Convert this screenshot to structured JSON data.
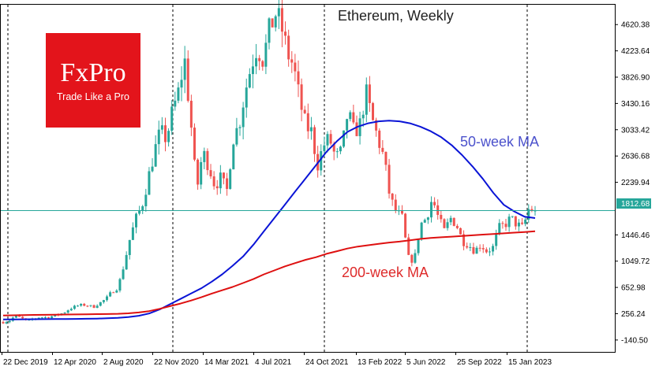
{
  "brand": {
    "name": "FxPro",
    "tagline": "Trade Like a Pro"
  },
  "chart_data": {
    "type": "candlestick",
    "title": "Ethereum, Weekly",
    "current_price": 1812.68,
    "price_label": "1812.68",
    "ylim": [
      -320,
      4920
    ],
    "y_ticks": [
      {
        "value": 4620.38,
        "label": "4620.38"
      },
      {
        "value": 4223.64,
        "label": "4223.64"
      },
      {
        "value": 3826.9,
        "label": "3826.90"
      },
      {
        "value": 3430.16,
        "label": "3430.16"
      },
      {
        "value": 3033.42,
        "label": "3033.42"
      },
      {
        "value": 2636.68,
        "label": "2636.68"
      },
      {
        "value": 2239.94,
        "label": "2239.94"
      },
      {
        "value": 1446.46,
        "label": "1446.46"
      },
      {
        "value": 1049.72,
        "label": "1049.72"
      },
      {
        "value": 652.98,
        "label": "652.98"
      },
      {
        "value": 256.24,
        "label": "256.24"
      },
      {
        "value": -140.5,
        "label": "-140.50"
      }
    ],
    "x_ticks": [
      "22 Dec 2019",
      "12 Apr 2020",
      "2 Aug 2020",
      "22 Nov 2020",
      "14 Mar 2021",
      "4 Jul 2021",
      "24 Oct 2021",
      "13 Feb 2022",
      "5 Jun 2022",
      "25 Sep 2022",
      "15 Jan 2023"
    ],
    "separators": [
      "22 Nov 2020",
      "24 Oct 2021",
      "15 Jan 2023"
    ],
    "series": [
      {
        "name": "50-week MA",
        "color": "#0a14d6",
        "values": [
          170,
          171,
          172,
          173,
          174,
          175,
          176,
          178,
          180,
          183,
          187,
          195,
          205,
          225,
          260,
          320,
          400,
          480,
          560,
          640,
          740,
          850,
          980,
          1120,
          1300,
          1500,
          1700,
          1900,
          2100,
          2300,
          2500,
          2700,
          2860,
          3000,
          3080,
          3130,
          3160,
          3170,
          3160,
          3130,
          3080,
          3010,
          2920,
          2800,
          2650,
          2480,
          2290,
          2080,
          1900,
          1800,
          1720,
          1700
        ]
      },
      {
        "name": "200-week MA",
        "color": "#de1010",
        "values": [
          230,
          233,
          236,
          238,
          240,
          242,
          244,
          246,
          248,
          250,
          252,
          255,
          262,
          275,
          295,
          330,
          370,
          410,
          455,
          505,
          560,
          610,
          660,
          720,
          780,
          850,
          910,
          970,
          1020,
          1070,
          1110,
          1160,
          1200,
          1240,
          1270,
          1290,
          1310,
          1330,
          1345,
          1365,
          1385,
          1400,
          1410,
          1420,
          1430,
          1440,
          1450,
          1460,
          1470,
          1480,
          1490,
          1500
        ]
      }
    ],
    "ma_labels": [
      {
        "text": "50-week MA",
        "color": "#4c52cc"
      },
      {
        "text": "200-week MA",
        "color": "#de2b2b"
      }
    ],
    "colors": {
      "up": "#26a69a",
      "down": "#ef5350",
      "price_line": "#26a69a"
    },
    "ohlc_keypoints": [
      130,
      150,
      225,
      190,
      140,
      180,
      205,
      200,
      215,
      240,
      270,
      330,
      370,
      390,
      380,
      360,
      420,
      480,
      590,
      650,
      1000,
      1400,
      1700,
      1900,
      2300,
      2700,
      3000,
      2900,
      3300,
      3600,
      4100,
      3200,
      2100,
      2700,
      2500,
      2200,
      2300,
      2100,
      2900,
      3100,
      3600,
      4000,
      4300,
      4100,
      4500,
      4800,
      4600,
      4200,
      4000,
      3500,
      3100,
      3000,
      2500,
      2800,
      2900,
      2600,
      2700,
      3300,
      3000,
      3100,
      3600,
      3200,
      2900,
      2600,
      2000,
      1800,
      1700,
      1100,
      1050,
      1600,
      1700,
      2000,
      1700,
      1500,
      1700,
      1600,
      1350,
      1300,
      1200,
      1300,
      1200,
      1250,
      1550,
      1600,
      1700,
      1600,
      1550,
      1850,
      1812.68
    ]
  }
}
